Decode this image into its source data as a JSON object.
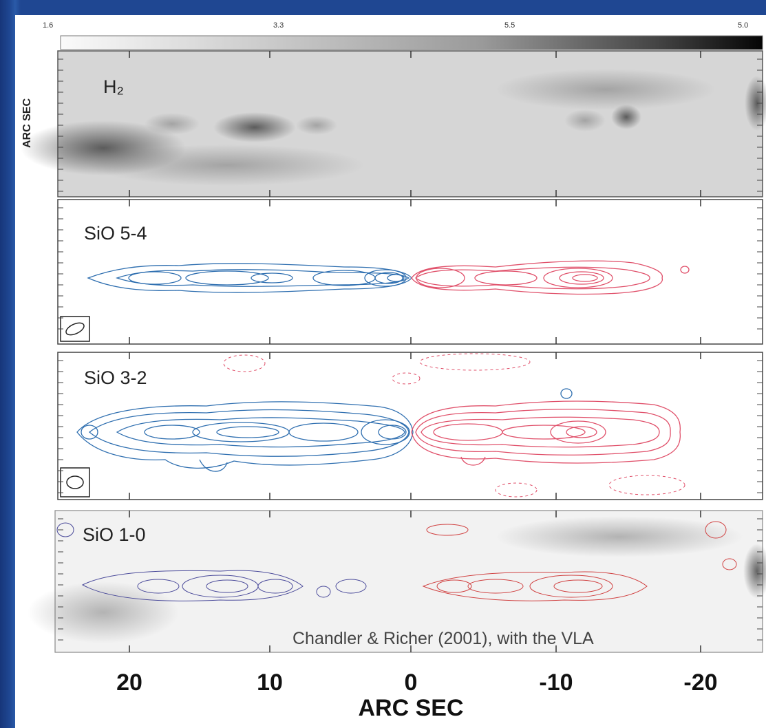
{
  "figure": {
    "colorbar_labels": [
      "1.6",
      "3.3",
      "5.5",
      "5.0"
    ],
    "y_axis_title": "ARC SEC",
    "x_axis_title": "ARC SEC",
    "x_tick_labels": [
      "20",
      "10",
      "0",
      "-10",
      "-20"
    ],
    "credit": "Chandler & Richer (2001), with the VLA"
  },
  "panels": [
    {
      "label": "H₂"
    },
    {
      "label": "SiO 5-4"
    },
    {
      "label": "SiO 3-2"
    },
    {
      "label": "SiO 1-0"
    }
  ],
  "colors": {
    "background": "#1d3f86",
    "blue_contours": "#2f6fb0",
    "red_contours": "#e0506a",
    "sio10_blue": "#4a4a9a",
    "sio10_red": "#d04040"
  },
  "icons": [
    "beam-ellipse-icon"
  ]
}
